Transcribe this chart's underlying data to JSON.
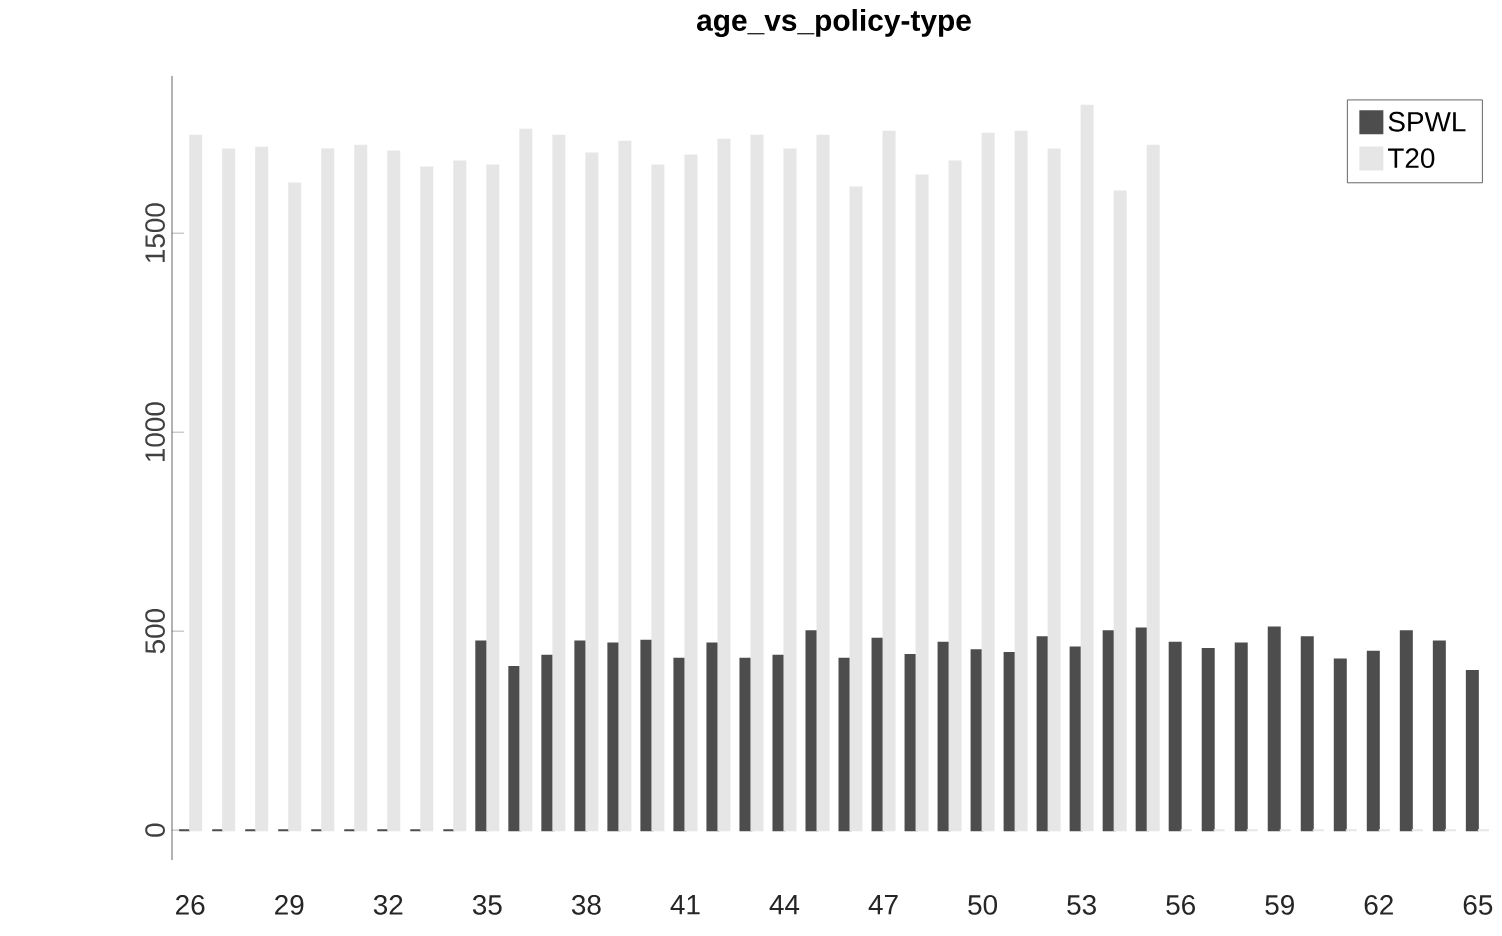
{
  "chart_data": {
    "type": "bar",
    "title": "age_vs_policy-type",
    "categories": [
      "26",
      null,
      null,
      "29",
      null,
      null,
      "32",
      null,
      null,
      "35",
      null,
      null,
      "38",
      null,
      null,
      "41",
      null,
      null,
      "44",
      null,
      null,
      "47",
      null,
      null,
      "50",
      null,
      null,
      "53",
      null,
      null,
      "56",
      null,
      null,
      "59",
      null,
      null,
      "62",
      null,
      null,
      "65"
    ],
    "series": [
      {
        "name": "SPWL",
        "color": "#4d4d4d",
        "values": [
          0,
          0,
          0,
          0,
          0,
          0,
          0,
          0,
          0,
          474,
          410,
          438,
          474,
          469,
          476,
          431,
          469,
          431,
          438,
          500,
          431,
          481,
          440,
          471,
          452,
          445,
          485,
          459,
          500,
          507,
          471,
          455,
          469,
          509,
          485,
          429,
          448,
          500,
          474,
          400
        ]
      },
      {
        "name": "T20",
        "color": "#e6e6e6",
        "values": [
          1745,
          1710,
          1715,
          1625,
          1710,
          1720,
          1705,
          1665,
          1680,
          1670,
          1760,
          1745,
          1700,
          1730,
          1670,
          1695,
          1735,
          1745,
          1710,
          1745,
          1615,
          1755,
          1645,
          1680,
          1750,
          1755,
          1710,
          1820,
          1605,
          1720,
          0,
          0,
          0,
          0,
          0,
          0,
          0,
          0,
          0,
          0
        ]
      }
    ],
    "ylim": [
      -75,
      1895
    ],
    "yticks": [
      0,
      500,
      1000,
      1500
    ],
    "legend": "top right",
    "grid": false
  }
}
